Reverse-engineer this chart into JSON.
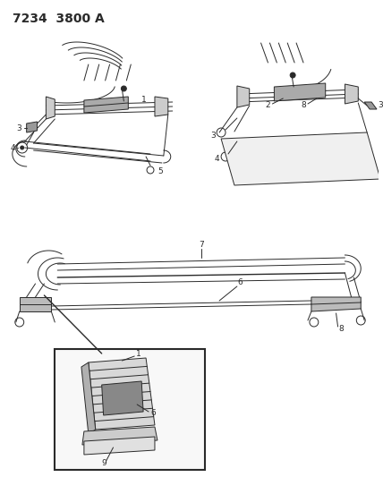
{
  "title": "7234  3800 A",
  "bg_color": "#ffffff",
  "line_color": "#2a2a2a",
  "figsize": [
    4.28,
    5.33
  ],
  "dpi": 100,
  "header_fontsize": 10,
  "label_fontsize": 6.5
}
